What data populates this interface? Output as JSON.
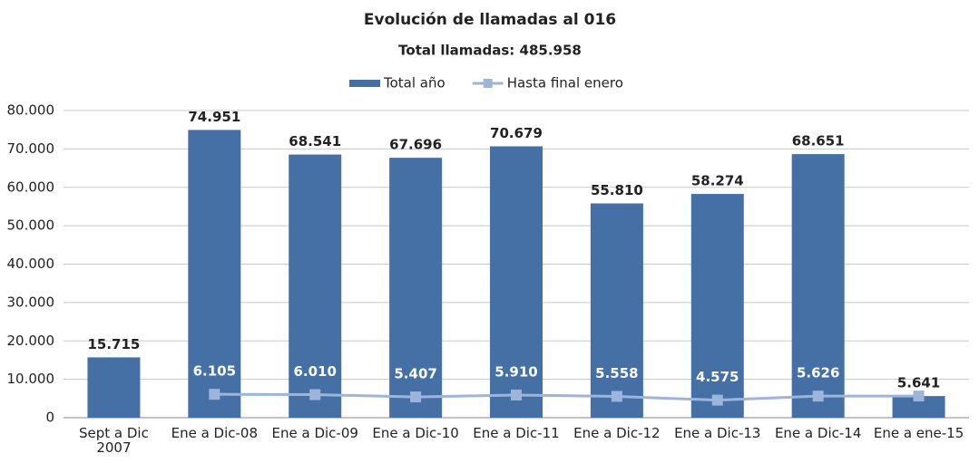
{
  "chart_data": {
    "type": "bar",
    "title": "Evolución de llamadas al 016",
    "subtitle": "Total llamadas: 485.958",
    "categories": [
      "Sept a Dic 2007",
      "Ene a Dic-08",
      "Ene a Dic-09",
      "Ene a Dic-10",
      "Ene a Dic-11",
      "Ene a Dic-12",
      "Ene a Dic-13",
      "Ene a Dic-14",
      "Ene a ene-15"
    ],
    "series": [
      {
        "name": "Total año",
        "type": "bar",
        "color": "#4470a6",
        "values": [
          15715,
          74951,
          68541,
          67696,
          70679,
          55810,
          58274,
          68651,
          5641
        ],
        "value_labels": [
          "15.715",
          "74.951",
          "68.541",
          "67.696",
          "70.679",
          "55.810",
          "58.274",
          "68.651",
          "5.641"
        ]
      },
      {
        "name": "Hasta final enero",
        "type": "line",
        "color": "#9db5db",
        "values": [
          null,
          6105,
          6010,
          5407,
          5910,
          5558,
          4575,
          5626,
          5641
        ],
        "value_labels": [
          null,
          "6.105",
          "6.010",
          "5.407",
          "5.910",
          "5.558",
          "4.575",
          "5.626",
          null
        ]
      }
    ],
    "ylim": [
      0,
      80000
    ],
    "yticks": [
      {
        "value": 0,
        "label": "0"
      },
      {
        "value": 10000,
        "label": "10.000"
      },
      {
        "value": 20000,
        "label": "20.000"
      },
      {
        "value": 30000,
        "label": "30.000"
      },
      {
        "value": 40000,
        "label": "40.000"
      },
      {
        "value": 50000,
        "label": "50.000"
      },
      {
        "value": 60000,
        "label": "60.000"
      },
      {
        "value": 70000,
        "label": "70.000"
      },
      {
        "value": 80000,
        "label": "80.000"
      }
    ],
    "grid": true,
    "legend": "top"
  }
}
